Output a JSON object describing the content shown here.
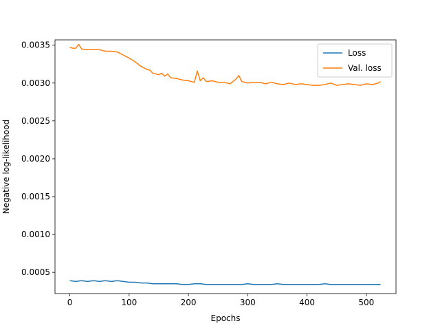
{
  "chart_data": {
    "type": "line",
    "title": "",
    "xlabel": "Epochs",
    "ylabel": "Negative log-likelihood",
    "xlim": [
      -25,
      550
    ],
    "ylim": [
      0.00022,
      0.00357
    ],
    "xticks": [
      0,
      100,
      200,
      300,
      400,
      500
    ],
    "yticks": [
      0.0005,
      0.001,
      0.0015,
      0.002,
      0.0025,
      0.003,
      0.0035
    ],
    "ytick_labels": [
      "0.0005",
      "0.0010",
      "0.0015",
      "0.0020",
      "0.0025",
      "0.0030",
      "0.0035"
    ],
    "grid": false,
    "legend_position": "top-right",
    "series": [
      {
        "name": "Loss",
        "color": "#1f77b4",
        "x": [
          0,
          10,
          20,
          30,
          40,
          50,
          60,
          70,
          80,
          90,
          100,
          110,
          120,
          130,
          140,
          150,
          160,
          170,
          180,
          190,
          200,
          210,
          220,
          230,
          240,
          250,
          260,
          270,
          280,
          290,
          300,
          310,
          320,
          330,
          340,
          350,
          360,
          370,
          380,
          390,
          400,
          410,
          420,
          430,
          440,
          450,
          460,
          470,
          480,
          490,
          500,
          510,
          520,
          524
        ],
        "values": [
          0.00039,
          0.00038,
          0.00039,
          0.00038,
          0.00039,
          0.00038,
          0.00039,
          0.00038,
          0.00039,
          0.00038,
          0.00037,
          0.00037,
          0.00036,
          0.00036,
          0.00035,
          0.00035,
          0.00035,
          0.00035,
          0.00035,
          0.00034,
          0.00034,
          0.00035,
          0.00035,
          0.00034,
          0.00034,
          0.00034,
          0.00034,
          0.00034,
          0.00034,
          0.00034,
          0.00035,
          0.00034,
          0.00034,
          0.00034,
          0.00034,
          0.00035,
          0.00034,
          0.00034,
          0.00034,
          0.00034,
          0.00034,
          0.00034,
          0.00034,
          0.00035,
          0.00034,
          0.00034,
          0.00034,
          0.00034,
          0.00034,
          0.00034,
          0.00034,
          0.00034,
          0.00034,
          0.00034
        ]
      },
      {
        "name": "Val. loss",
        "color": "#ff7f0e",
        "x": [
          0,
          5,
          10,
          15,
          20,
          25,
          30,
          40,
          50,
          60,
          70,
          80,
          90,
          100,
          110,
          120,
          130,
          135,
          140,
          150,
          155,
          160,
          165,
          170,
          180,
          190,
          200,
          210,
          215,
          220,
          225,
          230,
          240,
          250,
          260,
          270,
          280,
          285,
          290,
          300,
          310,
          320,
          330,
          340,
          350,
          360,
          370,
          380,
          390,
          400,
          410,
          420,
          430,
          440,
          450,
          460,
          470,
          480,
          490,
          500,
          510,
          520,
          524
        ],
        "values": [
          0.00347,
          0.00346,
          0.00346,
          0.00351,
          0.00345,
          0.00344,
          0.00344,
          0.00344,
          0.00344,
          0.00342,
          0.00342,
          0.00341,
          0.00337,
          0.00333,
          0.00328,
          0.00322,
          0.00318,
          0.00317,
          0.00313,
          0.00311,
          0.00313,
          0.00309,
          0.00312,
          0.00307,
          0.00306,
          0.00304,
          0.00303,
          0.00301,
          0.00316,
          0.00303,
          0.00307,
          0.00302,
          0.00303,
          0.00301,
          0.00301,
          0.00299,
          0.00305,
          0.0031,
          0.00302,
          0.003,
          0.00301,
          0.00301,
          0.00299,
          0.00301,
          0.00299,
          0.00298,
          0.003,
          0.00298,
          0.00299,
          0.00298,
          0.00297,
          0.00297,
          0.00298,
          0.003,
          0.00297,
          0.00298,
          0.00299,
          0.00298,
          0.00297,
          0.00299,
          0.00298,
          0.003,
          0.00302
        ]
      }
    ]
  }
}
